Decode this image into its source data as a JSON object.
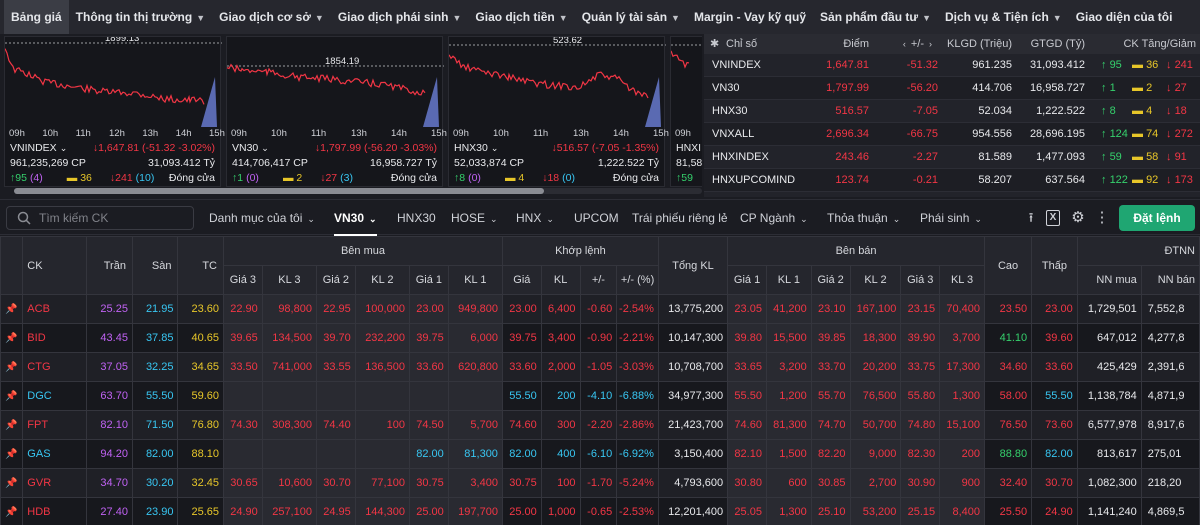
{
  "topnav": {
    "items": [
      {
        "label": "Bảng giá",
        "caret": false,
        "active": true
      },
      {
        "label": "Thông tin thị trường",
        "caret": true
      },
      {
        "label": "Giao dịch cơ sở",
        "caret": true
      },
      {
        "label": "Giao dịch phái sinh",
        "caret": true
      },
      {
        "label": "Giao dịch tiền",
        "caret": true
      },
      {
        "label": "Quản lý tài sản",
        "caret": true
      },
      {
        "label": "Margin - Vay kỹ quỹ",
        "caret": false
      },
      {
        "label": "Sản phẩm đầu tư",
        "caret": true
      },
      {
        "label": "Dịch vụ & Tiện ích",
        "caret": true
      },
      {
        "label": "Giao diện của tôi",
        "caret": false
      }
    ]
  },
  "charts": [
    {
      "top_label": "1899.13",
      "times": [
        "09h",
        "10h",
        "11h",
        "12h",
        "13h",
        "14h",
        "15h"
      ],
      "name": "VNINDEX",
      "value": "1,647.81",
      "change": "(-51.32 -3.02%)",
      "volume": "961,235,269 CP",
      "value_traded": "31,093.412 Tỷ",
      "up": "95",
      "up_ceiling": "(4)",
      "ref": "36",
      "down": "241",
      "down_floor": "(10)",
      "status": "Đóng cửa"
    },
    {
      "top_label": "1854.19",
      "times": [
        "09h",
        "10h",
        "11h",
        "13h",
        "14h",
        "15h"
      ],
      "name": "VN30",
      "value": "1,797.99",
      "change": "(-56.20 -3.03%)",
      "volume": "414,706,417 CP",
      "value_traded": "16,958.727 Tỷ",
      "up": "1",
      "up_ceiling": "(0)",
      "ref": "2",
      "down": "27",
      "down_floor": "(3)",
      "status": "Đóng cửa"
    },
    {
      "top_label": "523.62",
      "times": [
        "09h",
        "10h",
        "11h",
        "13h",
        "14h",
        "15h"
      ],
      "name": "HNX30",
      "value": "516.57",
      "change": "(-7.05 -1.35%)",
      "volume": "52,033,874 CP",
      "value_traded": "1,222.522 Tỷ",
      "up": "8",
      "up_ceiling": "(0)",
      "ref": "4",
      "down": "18",
      "down_floor": "(0)",
      "status": "Đóng cửa"
    },
    {
      "top_label": "",
      "times": [
        "09h"
      ],
      "name": "HNXI",
      "value": "",
      "change": "",
      "volume": "81,58",
      "value_traded": "",
      "up": "59",
      "up_ceiling": "",
      "ref": "",
      "down": "",
      "down_floor": "",
      "status": ""
    }
  ],
  "index_table": {
    "headers": {
      "index": "Chỉ số",
      "points": "Điểm",
      "change": "+/-",
      "volume": "KLGD (Triệu)",
      "value": "GTGD (Tỷ)",
      "breadth": "CK Tăng/Giảm"
    },
    "rows": [
      {
        "name": "VNINDEX",
        "points": "1,647.81",
        "change": "-51.32",
        "volume": "961.235",
        "value": "31,093.412",
        "up": "95",
        "ref": "36",
        "down": "241"
      },
      {
        "name": "VN30",
        "points": "1,797.99",
        "change": "-56.20",
        "volume": "414.706",
        "value": "16,958.727",
        "up": "1",
        "ref": "2",
        "down": "27"
      },
      {
        "name": "HNX30",
        "points": "516.57",
        "change": "-7.05",
        "volume": "52.034",
        "value": "1,222.522",
        "up": "8",
        "ref": "4",
        "down": "18"
      },
      {
        "name": "VNXALL",
        "points": "2,696.34",
        "change": "-66.75",
        "volume": "954.556",
        "value": "28,696.195",
        "up": "124",
        "ref": "74",
        "down": "272"
      },
      {
        "name": "HNXINDEX",
        "points": "243.46",
        "change": "-2.27",
        "volume": "81.589",
        "value": "1,477.093",
        "up": "59",
        "ref": "58",
        "down": "91"
      },
      {
        "name": "HNXUPCOMINDE",
        "points": "123.74",
        "change": "-0.21",
        "volume": "58.207",
        "value": "637.564",
        "up": "122",
        "ref": "92",
        "down": "173"
      }
    ]
  },
  "filterbar": {
    "search_placeholder": "Tìm kiếm CK",
    "tabs": [
      "Danh mục của tôi",
      "VN30",
      "HNX30",
      "HOSE",
      "HNX",
      "UPCOM",
      "Trái phiếu riêng lẻ",
      "CP Ngành",
      "Thỏa thuận",
      "Phái sinh"
    ],
    "order_button": "Đặt lệnh"
  },
  "board": {
    "headers": {
      "symbol": "CK",
      "ceiling": "Trần",
      "floor": "Sàn",
      "ref": "TC",
      "bid_group": "Bên mua",
      "match_group": "Khớp lệnh",
      "total_volume": "Tổng KL",
      "ask_group": "Bên bán",
      "high": "Cao",
      "low": "Thấp",
      "foreign_group": "ĐTNN",
      "bid_cols": [
        "Giá 3",
        "KL 3",
        "Giá 2",
        "KL 2",
        "Giá 1",
        "KL 1"
      ],
      "match_cols": [
        "Giá",
        "KL",
        "+/-",
        "+/- (%)"
      ],
      "ask_cols": [
        "Giá 1",
        "KL 1",
        "Giá 2",
        "KL 2",
        "Giá 3",
        "KL 3"
      ],
      "foreign_cols": [
        "NN mua",
        "NN bán"
      ]
    },
    "rows": [
      {
        "sym": "ACB",
        "c": "red",
        "ceil": "25.25",
        "floor": "21.95",
        "ref": "23.60",
        "b3": "22.90",
        "v3": "98,800",
        "b2": "22.95",
        "v2": "100,000",
        "b1": "23.00",
        "v1": "949,800",
        "mp": "23.00",
        "mv": "6,400",
        "chg": "-0.60",
        "pct": "-2.54%",
        "tot": "13,775,200",
        "a1": "23.05",
        "av1": "41,200",
        "a2": "23.10",
        "av2": "167,100",
        "a3": "23.15",
        "av3": "70,400",
        "hi": "23.50",
        "hic": "red",
        "lo": "23.00",
        "loc": "red",
        "nnb": "1,729,501",
        "nns": "7,552,8"
      },
      {
        "sym": "BID",
        "c": "red",
        "ceil": "43.45",
        "floor": "37.85",
        "ref": "40.65",
        "b3": "39.65",
        "v3": "134,500",
        "b2": "39.70",
        "v2": "232,200",
        "b1": "39.75",
        "v1": "6,000",
        "mp": "39.75",
        "mv": "3,400",
        "chg": "-0.90",
        "pct": "-2.21%",
        "tot": "10,147,300",
        "a1": "39.80",
        "av1": "15,500",
        "a2": "39.85",
        "av2": "18,300",
        "a3": "39.90",
        "av3": "3,700",
        "hi": "41.10",
        "hic": "green",
        "lo": "39.60",
        "loc": "red",
        "nnb": "647,012",
        "nns": "4,277,8"
      },
      {
        "sym": "CTG",
        "c": "red",
        "ceil": "37.05",
        "floor": "32.25",
        "ref": "34.65",
        "b3": "33.50",
        "v3": "741,000",
        "b2": "33.55",
        "v2": "136,500",
        "b1": "33.60",
        "v1": "620,800",
        "mp": "33.60",
        "mv": "2,000",
        "chg": "-1.05",
        "pct": "-3.03%",
        "tot": "10,708,700",
        "a1": "33.65",
        "av1": "3,200",
        "a2": "33.70",
        "av2": "20,200",
        "a3": "33.75",
        "av3": "17,300",
        "hi": "34.60",
        "hic": "red",
        "lo": "33.60",
        "loc": "red",
        "nnb": "425,429",
        "nns": "2,391,6"
      },
      {
        "sym": "DGC",
        "c": "cyan",
        "ceil": "63.70",
        "floor": "55.50",
        "ref": "59.60",
        "b3": "",
        "v3": "",
        "b2": "",
        "v2": "",
        "b1": "",
        "v1": "",
        "mp": "55.50",
        "mv": "200",
        "chg": "-4.10",
        "pct": "-6.88%",
        "tot": "34,977,300",
        "a1": "55.50",
        "av1": "1,200",
        "a2": "55.70",
        "av2": "76,500",
        "a3": "55.80",
        "av3": "1,300",
        "hi": "58.00",
        "hic": "red",
        "lo": "55.50",
        "loc": "cyan",
        "nnb": "1,138,784",
        "nns": "4,871,9"
      },
      {
        "sym": "FPT",
        "c": "red",
        "ceil": "82.10",
        "floor": "71.50",
        "ref": "76.80",
        "b3": "74.30",
        "v3": "308,300",
        "b2": "74.40",
        "v2": "100",
        "b1": "74.50",
        "v1": "5,700",
        "mp": "74.60",
        "mv": "300",
        "chg": "-2.20",
        "pct": "-2.86%",
        "tot": "21,423,700",
        "a1": "74.60",
        "av1": "81,300",
        "a2": "74.70",
        "av2": "50,700",
        "a3": "74.80",
        "av3": "15,100",
        "hi": "76.50",
        "hic": "red",
        "lo": "73.60",
        "loc": "red",
        "nnb": "6,577,978",
        "nns": "8,917,6"
      },
      {
        "sym": "GAS",
        "c": "cyan",
        "ceil": "94.20",
        "floor": "82.00",
        "ref": "88.10",
        "b3": "",
        "v3": "",
        "b2": "",
        "v2": "",
        "b1": "82.00",
        "v1": "81,300",
        "mp": "82.00",
        "mv": "400",
        "chg": "-6.10",
        "pct": "-6.92%",
        "tot": "3,150,400",
        "a1": "82.10",
        "av1": "1,500",
        "a2": "82.20",
        "av2": "9,000",
        "a3": "82.30",
        "av3": "200",
        "hi": "88.80",
        "hic": "green",
        "lo": "82.00",
        "loc": "cyan",
        "nnb": "813,617",
        "nns": "275,01"
      },
      {
        "sym": "GVR",
        "c": "red",
        "ceil": "34.70",
        "floor": "30.20",
        "ref": "32.45",
        "b3": "30.65",
        "v3": "10,600",
        "b2": "30.70",
        "v2": "77,100",
        "b1": "30.75",
        "v1": "3,400",
        "mp": "30.75",
        "mv": "100",
        "chg": "-1.70",
        "pct": "-5.24%",
        "tot": "4,793,600",
        "a1": "30.80",
        "av1": "600",
        "a2": "30.85",
        "av2": "2,700",
        "a3": "30.90",
        "av3": "900",
        "hi": "32.40",
        "hic": "red",
        "lo": "30.70",
        "loc": "red",
        "nnb": "1,082,300",
        "nns": "218,20"
      },
      {
        "sym": "HDB",
        "c": "red",
        "ceil": "27.40",
        "floor": "23.90",
        "ref": "25.65",
        "b3": "24.90",
        "v3": "257,100",
        "b2": "24.95",
        "v2": "144,300",
        "b1": "25.00",
        "v1": "197,700",
        "mp": "25.00",
        "mv": "1,000",
        "chg": "-0.65",
        "pct": "-2.53%",
        "tot": "12,201,400",
        "a1": "25.05",
        "av1": "1,300",
        "a2": "25.10",
        "av2": "53,200",
        "a3": "25.15",
        "av3": "8,400",
        "hi": "25.50",
        "hic": "red",
        "lo": "24.90",
        "loc": "red",
        "nnb": "1,141,240",
        "nns": "4,869,5"
      }
    ]
  }
}
